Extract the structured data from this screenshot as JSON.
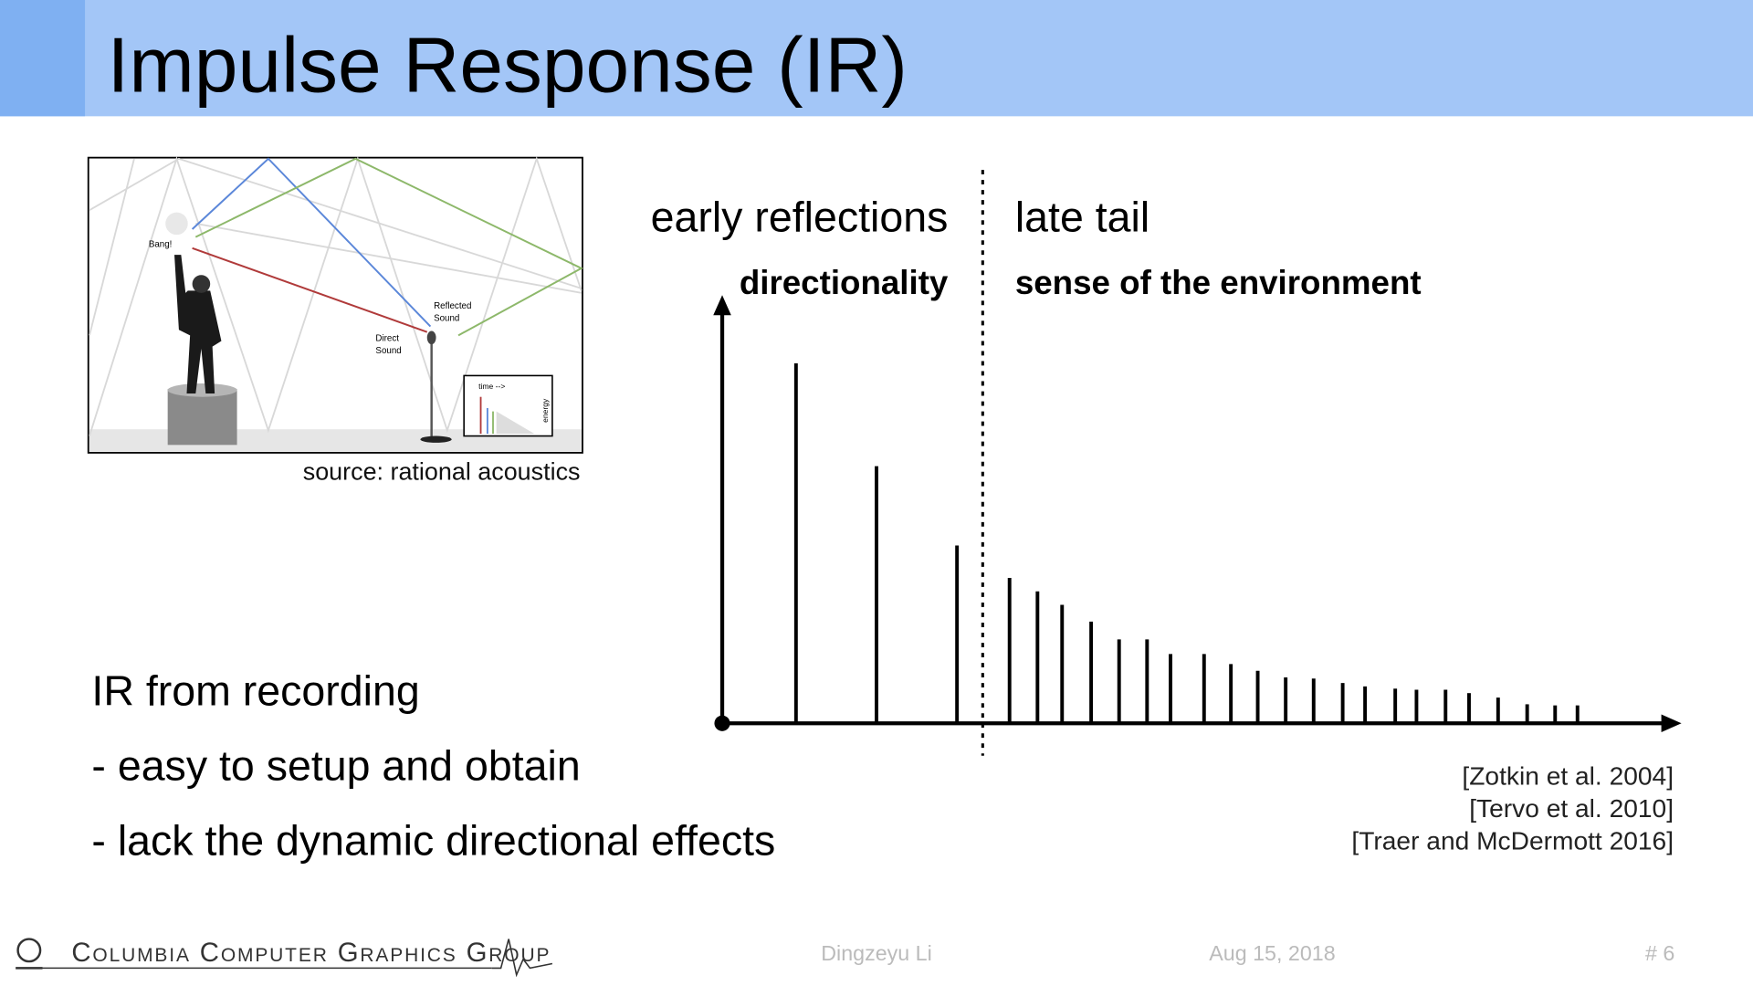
{
  "header": {
    "title": "Impulse Response (IR)"
  },
  "figure": {
    "labels": [
      "Bang!",
      "Reflected",
      "Sound",
      "Direct",
      "Sound",
      "time -->",
      "energy"
    ],
    "caption": "source: rational acoustics"
  },
  "diagram": {
    "early_label": "early reflections",
    "early_sub": "directionality",
    "late_label": "late tail",
    "late_sub": "sense of the environment"
  },
  "body": {
    "heading": "IR from recording",
    "bullets": [
      "- easy to setup and obtain",
      "- lack the dynamic directional effects"
    ]
  },
  "references": [
    "[Zotkin et al. 2004]",
    "[Tervo et al. 2010]",
    "[Traer and McDermott 2016]"
  ],
  "footer": {
    "logo": "Columbia Computer Graphics Group",
    "presenter": "Dingzeyu Li",
    "date": "Aug 15, 2018",
    "page": "# 6"
  }
}
